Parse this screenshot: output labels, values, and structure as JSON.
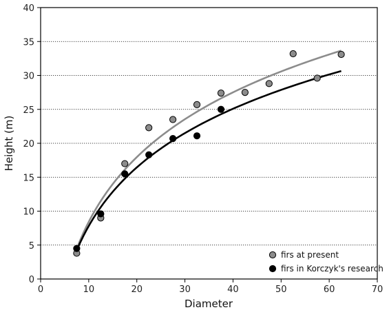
{
  "chart_data": {
    "type": "scatter",
    "title": "",
    "xlabel": "Diameter",
    "ylabel": "Height (m)",
    "xlim": [
      0,
      70
    ],
    "ylim": [
      0,
      40
    ],
    "x_ticks": [
      0,
      10,
      20,
      30,
      40,
      50,
      60,
      70
    ],
    "y_ticks": [
      0,
      5,
      10,
      15,
      20,
      25,
      30,
      35,
      40
    ],
    "grid": "horizontal dotted",
    "legend_position": "bottom-right",
    "series": [
      {
        "name": "firs at present",
        "color": "#8c8c8c",
        "x": [
          7.5,
          12.5,
          17.5,
          22.5,
          27.5,
          32.5,
          37.5,
          42.5,
          47.5,
          52.5,
          57.5,
          62.5
        ],
        "y": [
          3.8,
          9.0,
          17.0,
          22.3,
          23.5,
          25.7,
          27.4,
          27.5,
          28.8,
          33.2,
          29.6,
          33.1
        ],
        "trend_color": "#8c8c8c",
        "trend_x_range": [
          7.5,
          62.5
        ]
      },
      {
        "name": "firs in Korczyk's research",
        "color": "#000000",
        "x": [
          7.5,
          12.5,
          17.5,
          22.5,
          27.5,
          32.5,
          37.5
        ],
        "y": [
          4.5,
          9.6,
          15.5,
          18.3,
          20.7,
          21.1,
          25.0
        ],
        "trend_color": "#000000",
        "trend_x_range": [
          7.5,
          62.5
        ]
      }
    ]
  }
}
